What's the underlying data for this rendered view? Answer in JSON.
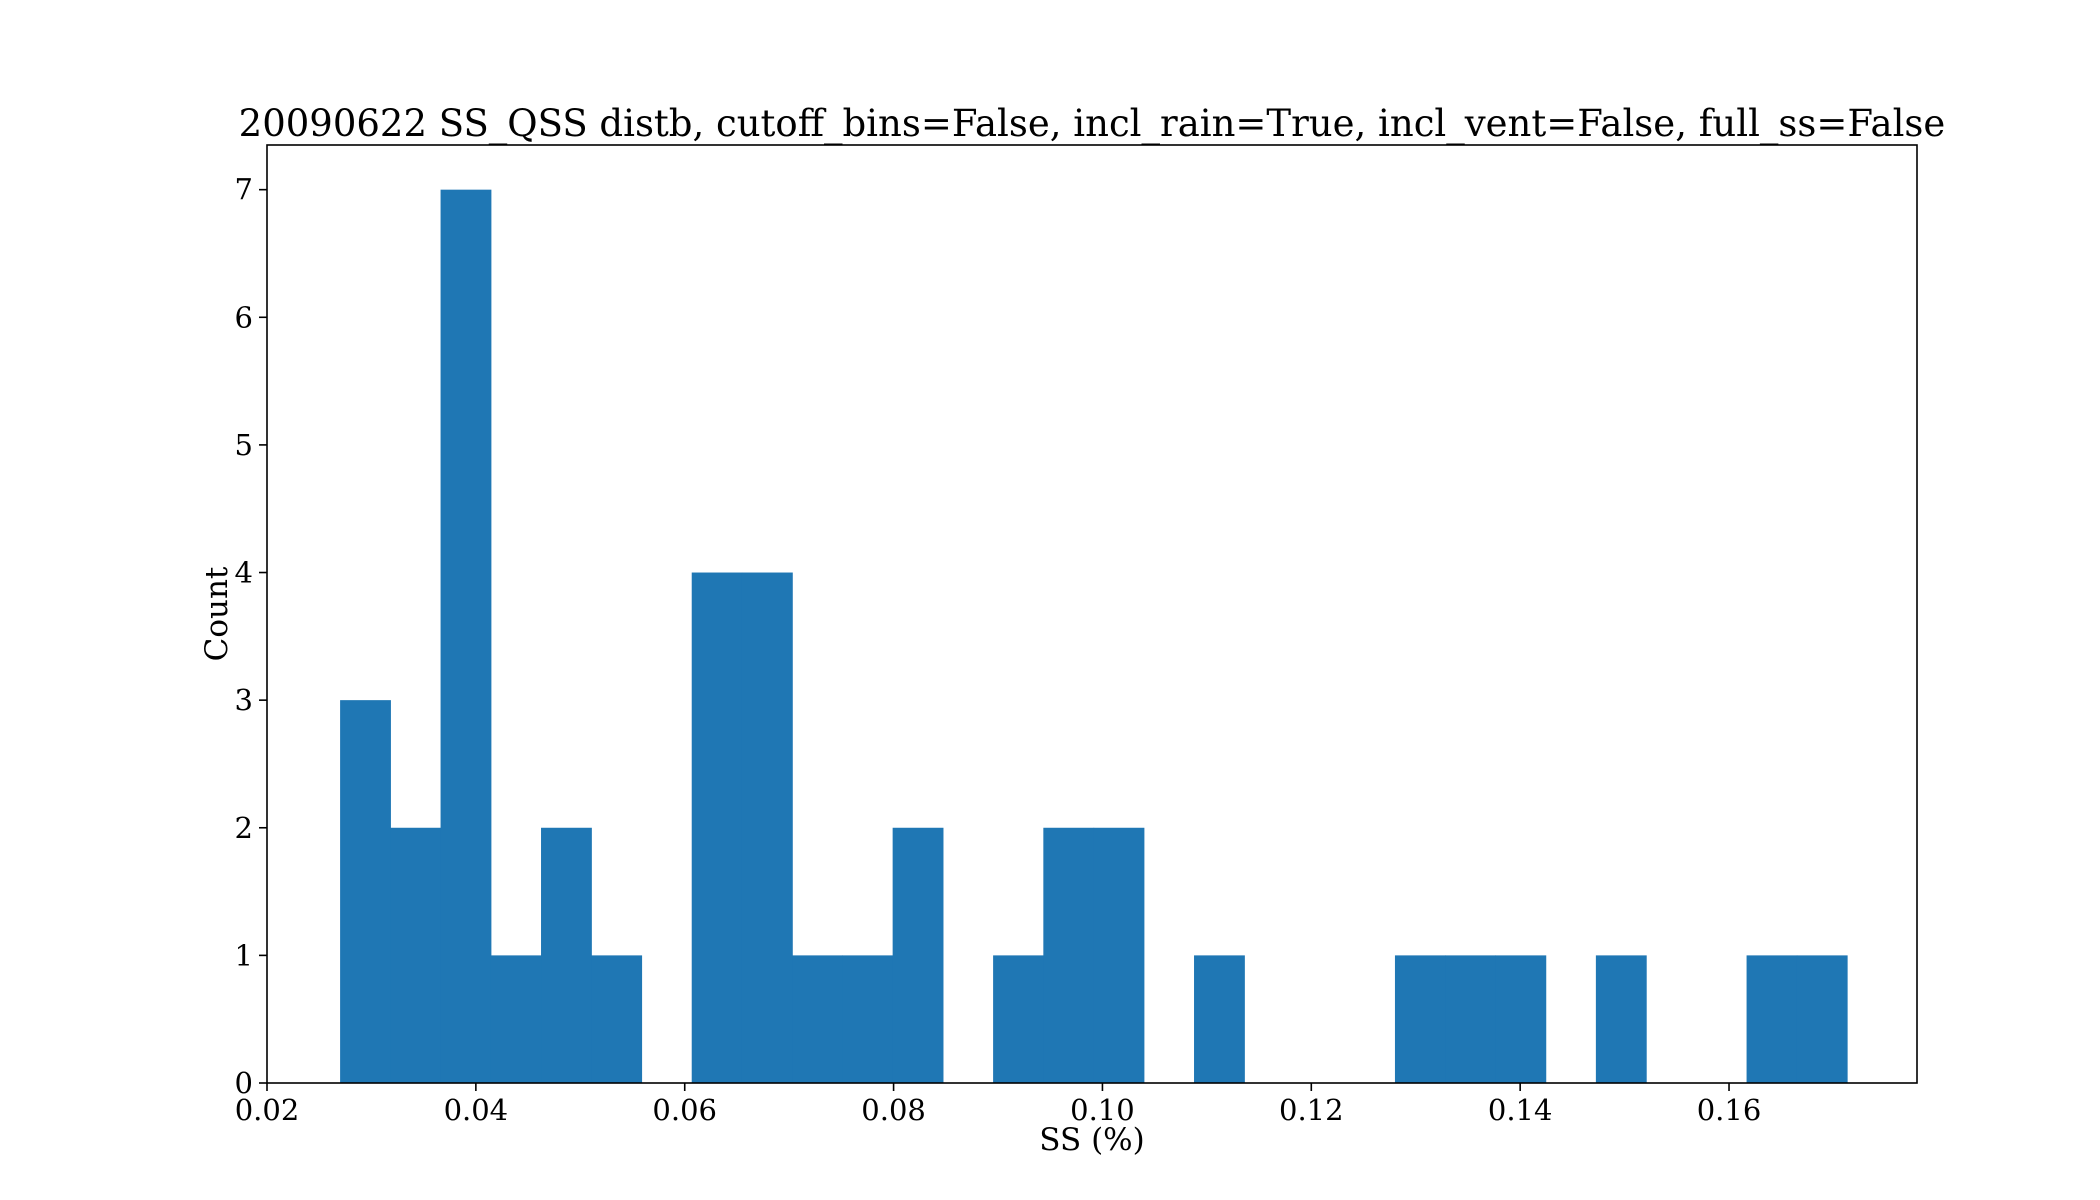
{
  "chart_data": {
    "type": "bar",
    "title": "20090622 SS_QSS distb, cutoff_bins=False, incl_rain=True, incl_vent=False, full_ss=False",
    "xlabel": "SS (%)",
    "ylabel": "Count",
    "xlim": [
      0.02,
      0.178
    ],
    "ylim": [
      0,
      7.35
    ],
    "xticks": [
      0.02,
      0.04,
      0.06,
      0.08,
      0.1,
      0.12,
      0.14,
      0.16
    ],
    "xtick_labels": [
      "0.02",
      "0.04",
      "0.06",
      "0.08",
      "0.10",
      "0.12",
      "0.14",
      "0.16"
    ],
    "yticks": [
      0,
      1,
      2,
      3,
      4,
      5,
      6,
      7
    ],
    "ytick_labels": [
      "0",
      "1",
      "2",
      "3",
      "4",
      "5",
      "6",
      "7"
    ],
    "bin_start": 0.027,
    "bin_width": 0.00481,
    "counts": [
      3,
      2,
      7,
      1,
      2,
      1,
      0,
      4,
      4,
      1,
      1,
      2,
      0,
      1,
      2,
      2,
      0,
      1,
      0,
      0,
      0,
      1,
      1,
      1,
      0,
      1,
      0,
      0,
      1,
      1
    ],
    "grid": false,
    "legend": "none",
    "bar_color": "#1f77b4"
  }
}
